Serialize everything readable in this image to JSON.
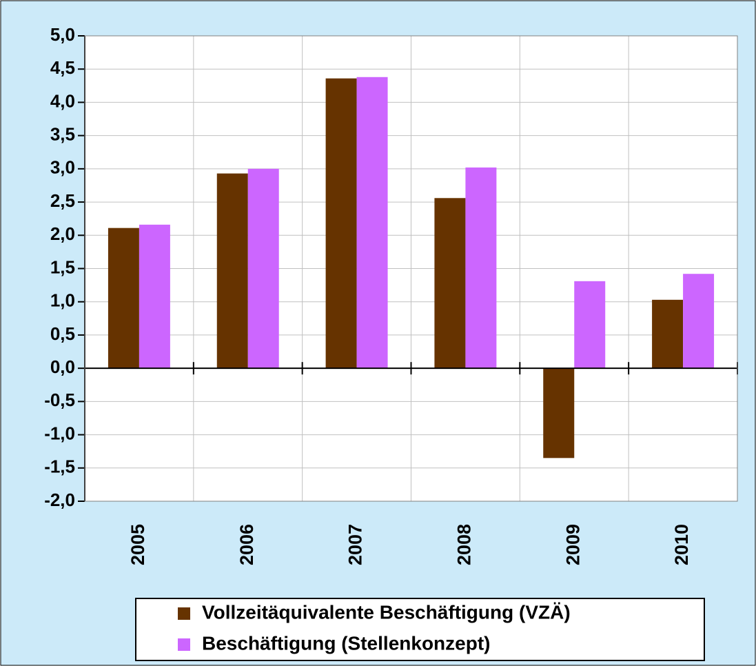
{
  "chart_data": {
    "type": "bar",
    "categories": [
      "2005",
      "2006",
      "2007",
      "2008",
      "2009",
      "2010"
    ],
    "series": [
      {
        "name": "Vollzeitäquivalente Beschäftigung (VZÄ)",
        "color": "#663300",
        "values": [
          2.11,
          2.93,
          4.36,
          2.56,
          -1.35,
          1.03
        ]
      },
      {
        "name": "Beschäftigung (Stellenkonzept)",
        "color": "#cc66ff",
        "values": [
          2.16,
          3.0,
          4.38,
          3.02,
          1.31,
          1.42
        ]
      }
    ],
    "ylim": [
      -2,
      5
    ],
    "yticks": [
      {
        "value": -2,
        "label": "-2,0"
      },
      {
        "value": -1.5,
        "label": "-1,5"
      },
      {
        "value": -1,
        "label": "-1,0"
      },
      {
        "value": -0.5,
        "label": "-0,5"
      },
      {
        "value": 0,
        "label": "0,0"
      },
      {
        "value": 0.5,
        "label": "0,5"
      },
      {
        "value": 1,
        "label": "1,0"
      },
      {
        "value": 1.5,
        "label": "1,5"
      },
      {
        "value": 2,
        "label": "2,0"
      },
      {
        "value": 2.5,
        "label": "2,5"
      },
      {
        "value": 3,
        "label": "3,0"
      },
      {
        "value": 3.5,
        "label": "3,5"
      },
      {
        "value": 4,
        "label": "4,0"
      },
      {
        "value": 4.5,
        "label": "4,5"
      },
      {
        "value": 5,
        "label": "5,0"
      }
    ],
    "grid": true,
    "legend": "bottom"
  }
}
